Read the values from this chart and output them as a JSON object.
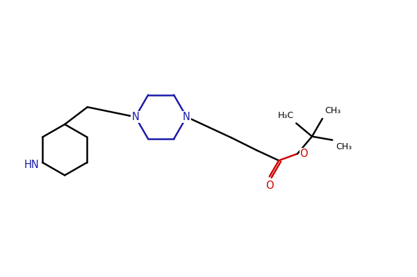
{
  "bg_color": "#ffffff",
  "bond_color": "#000000",
  "nitrogen_color": "#1a1aaa",
  "oxygen_color": "#cc0000",
  "line_width": 1.8,
  "font_size_atom": 10.5,
  "font_size_small": 9.0,
  "xlim": [
    0,
    10
  ],
  "ylim": [
    0,
    6.65
  ]
}
